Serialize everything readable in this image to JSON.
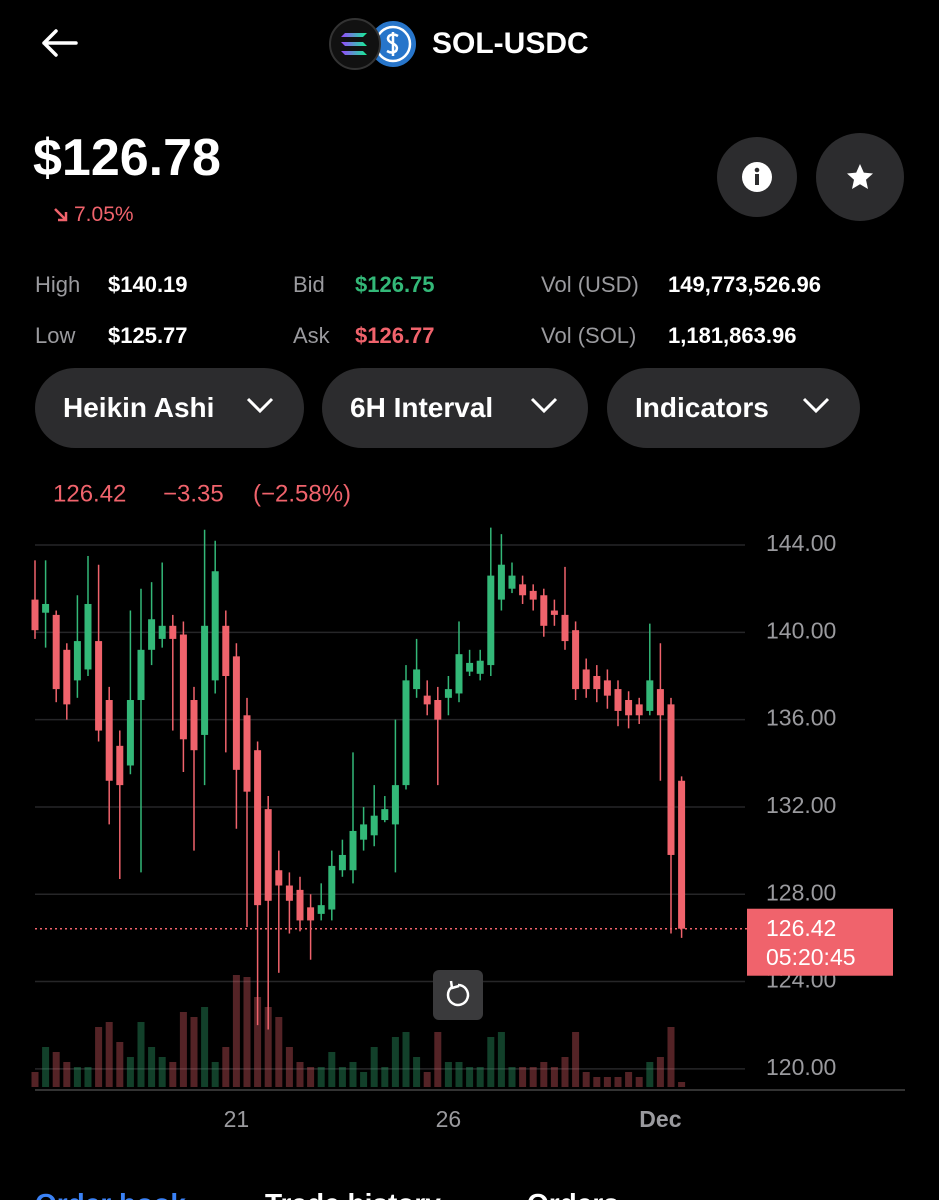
{
  "header": {
    "pair": "SOL-USDC"
  },
  "price": {
    "value": "$126.78",
    "change": "7.05%"
  },
  "stats": [
    {
      "label": "High",
      "value": "$140.19"
    },
    {
      "label": "Low",
      "value": "$125.77"
    },
    {
      "label": "Bid",
      "value": "$126.75"
    },
    {
      "label": "Ask",
      "value": "$126.77"
    },
    {
      "label": "Vol (USD)",
      "value": "149,773,526.96"
    },
    {
      "label": "Vol (SOL)",
      "value": "1,181,863.96"
    }
  ],
  "controls": [
    "Heikin Ashi",
    "6H Interval",
    "Indicators"
  ],
  "tabs": [
    "Order book",
    "Trade history",
    "Orders"
  ],
  "chart_data": {
    "type": "candlestick",
    "readout": {
      "last": "126.42",
      "change": "−3.35",
      "change_pct": "(−2.58%)"
    },
    "categories": [
      null,
      null,
      null,
      null,
      null,
      null,
      null,
      null,
      null,
      null,
      null,
      null,
      null,
      null,
      null,
      null,
      null,
      null,
      null,
      "21",
      null,
      null,
      null,
      null,
      null,
      null,
      null,
      null,
      null,
      null,
      null,
      null,
      null,
      null,
      null,
      null,
      null,
      null,
      null,
      "26",
      null,
      null,
      null,
      null,
      null,
      null,
      null,
      null,
      null,
      null,
      null,
      null,
      null,
      null,
      null,
      null,
      null,
      null,
      null,
      "Dec",
      null,
      null
    ],
    "open": [
      141.5,
      140.9,
      140.8,
      139.2,
      137.8,
      138.3,
      139.6,
      136.9,
      134.8,
      133.9,
      136.9,
      139.2,
      139.7,
      140.3,
      139.9,
      136.9,
      135.3,
      137.8,
      140.3,
      138.9,
      136.2,
      134.6,
      131.9,
      129.1,
      128.4,
      128.2,
      127.4,
      127.1,
      127.3,
      129.1,
      129.1,
      130.5,
      130.7,
      131.4,
      131.2,
      133,
      137.4,
      137.1,
      136.9,
      137,
      137.2,
      138.2,
      138.1,
      138.5,
      141.5,
      142,
      142.2,
      141.9,
      141.7,
      141,
      140.8,
      140.1,
      138.3,
      138,
      137.8,
      137.4,
      136.9,
      136.7,
      136.4,
      137.4,
      136.7,
      133.2
    ],
    "high": [
      143.3,
      143.3,
      141,
      139.5,
      141.7,
      143.5,
      143.1,
      137.5,
      135.5,
      141,
      142,
      142.3,
      143.2,
      140.8,
      140.5,
      137.5,
      144.7,
      144.2,
      141,
      139.5,
      137,
      135,
      132.5,
      130,
      129,
      128.8,
      128,
      128.5,
      130,
      130.5,
      134.5,
      132,
      133,
      132.5,
      136,
      138.5,
      139.7,
      137.8,
      137.5,
      138,
      140.5,
      139.2,
      139.2,
      144.8,
      144.5,
      143.2,
      142.6,
      142.2,
      142,
      141.5,
      143,
      140.5,
      138.8,
      138.5,
      138.3,
      137.8,
      137.3,
      137,
      140.4,
      139.5,
      137,
      133.4
    ],
    "low": [
      139.7,
      139.3,
      136.8,
      136,
      137,
      138,
      135,
      131.2,
      128.7,
      133.5,
      129,
      138.5,
      139.3,
      135.5,
      133.6,
      130,
      133,
      137.2,
      134.5,
      131,
      126.5,
      122,
      121.8,
      124.4,
      126.2,
      126.3,
      125,
      126.8,
      126.8,
      128.8,
      128.5,
      130,
      130.2,
      131.3,
      129,
      132.8,
      137,
      136.2,
      133,
      136.2,
      136.8,
      138,
      137.8,
      138,
      141,
      141.8,
      141.3,
      141,
      139.8,
      140.3,
      139.2,
      136.9,
      137,
      136.8,
      136.5,
      135.7,
      135.6,
      135.8,
      136.2,
      133.2,
      126.2,
      126
    ],
    "close": [
      140.1,
      141.3,
      137.4,
      136.7,
      139.6,
      141.3,
      135.5,
      133.2,
      133,
      136.9,
      139.2,
      140.6,
      140.3,
      139.7,
      135.1,
      134.6,
      140.3,
      142.8,
      138,
      133.7,
      132.7,
      127.5,
      127.7,
      128.4,
      127.7,
      126.8,
      126.8,
      127.5,
      129.3,
      129.8,
      130.9,
      131.2,
      131.6,
      131.9,
      133,
      137.8,
      138.3,
      136.7,
      136,
      137.4,
      139,
      138.6,
      138.7,
      142.6,
      143.1,
      142.6,
      141.7,
      141.5,
      140.3,
      140.8,
      139.6,
      137.4,
      137.4,
      137.4,
      137.1,
      136.4,
      136.2,
      136.2,
      137.8,
      136.2,
      129.8,
      126.42
    ],
    "volume": [
      15,
      40,
      35,
      25,
      20,
      20,
      60,
      65,
      45,
      30,
      65,
      40,
      30,
      25,
      75,
      70,
      80,
      25,
      40,
      112,
      110,
      90,
      80,
      70,
      40,
      25,
      20,
      20,
      35,
      20,
      25,
      15,
      40,
      20,
      50,
      55,
      30,
      15,
      55,
      25,
      25,
      20,
      20,
      50,
      55,
      20,
      20,
      20,
      25,
      20,
      30,
      55,
      15,
      10,
      10,
      10,
      15,
      10,
      25,
      30,
      60,
      5
    ],
    "volume_lim": [
      0,
      120
    ],
    "ylim": [
      119.03,
      144.69
    ],
    "yticks": [
      {
        "value": 144,
        "label": "144.00"
      },
      {
        "value": 140,
        "label": "140.00"
      },
      {
        "value": 136,
        "label": "136.00"
      },
      {
        "value": 132,
        "label": "132.00"
      },
      {
        "value": 128,
        "label": "128.00"
      },
      {
        "value": 124,
        "label": "124.00"
      },
      {
        "value": 120,
        "label": "120.00"
      }
    ],
    "last_price": {
      "value": 126.42,
      "label": "126.42"
    },
    "countdown": "05:20:45",
    "up_color": "#33b878",
    "down_color": "#f0636c",
    "grid": true
  }
}
